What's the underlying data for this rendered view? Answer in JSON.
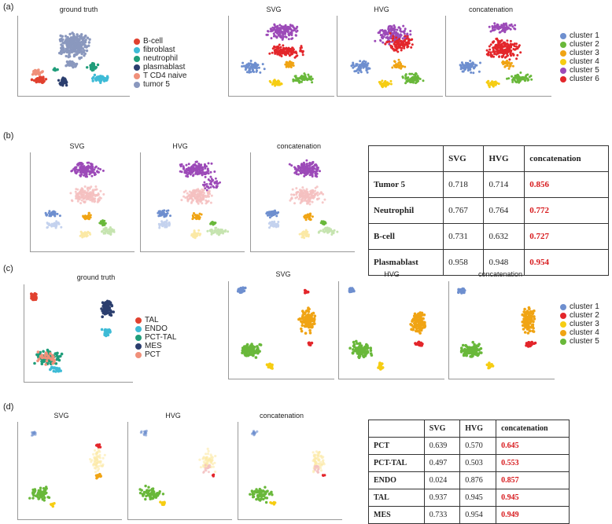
{
  "panels": {
    "a": {
      "label": "(a)",
      "titles": {
        "gt": "ground truth",
        "svg": "SVG",
        "hvg": "HVG",
        "cat": "concatenation"
      }
    },
    "b": {
      "label": "(b)",
      "titles": {
        "svg": "SVG",
        "hvg": "HVG",
        "cat": "concatenation"
      }
    },
    "c": {
      "label": "(c)",
      "titles": {
        "gt": "ground truth",
        "svg": "SVG",
        "hvg": "HVG",
        "cat": "concatenation"
      }
    },
    "d": {
      "label": "(d)",
      "titles": {
        "svg": "SVG",
        "hvg": "HVG",
        "cat": "concatenation"
      }
    }
  },
  "legend_a_celltypes": [
    {
      "label": "B-cell",
      "color": "#e1412f"
    },
    {
      "label": "fibroblast",
      "color": "#3ebbd6"
    },
    {
      "label": "neutrophil",
      "color": "#1f9d7a"
    },
    {
      "label": "plasmablast",
      "color": "#2b3e6e"
    },
    {
      "label": "T CD4 naive",
      "color": "#f0907a"
    },
    {
      "label": "tumor 5",
      "color": "#8a98be"
    }
  ],
  "legend_a_clusters": [
    {
      "label": "cluster 1",
      "color": "#6e8fcf"
    },
    {
      "label": "cluster 2",
      "color": "#69b83a"
    },
    {
      "label": "cluster 3",
      "color": "#f0a414"
    },
    {
      "label": "cluster 4",
      "color": "#f6cd13"
    },
    {
      "label": "cluster 5",
      "color": "#9c4ab8"
    },
    {
      "label": "cluster 6",
      "color": "#e3262b"
    }
  ],
  "legend_c_celltypes": [
    {
      "label": "TAL",
      "color": "#e1412f"
    },
    {
      "label": "ENDO",
      "color": "#3ebbd6"
    },
    {
      "label": "PCT-TAL",
      "color": "#1f9d7a"
    },
    {
      "label": "MES",
      "color": "#2b3e6e"
    },
    {
      "label": "PCT",
      "color": "#f0907a"
    }
  ],
  "legend_c_clusters": [
    {
      "label": "cluster 1",
      "color": "#6e8fcf"
    },
    {
      "label": "cluster 2",
      "color": "#e3262b"
    },
    {
      "label": "cluster 3",
      "color": "#f6cd13"
    },
    {
      "label": "cluster 4",
      "color": "#f0a414"
    },
    {
      "label": "cluster 5",
      "color": "#69b83a"
    }
  ],
  "table_b": {
    "headers": [
      "",
      "SVG",
      "HVG",
      "concatenation"
    ],
    "rows": [
      {
        "name": "Tumor 5",
        "svg": "0.718",
        "hvg": "0.714",
        "cat": "0.856"
      },
      {
        "name": "Neutrophil",
        "svg": "0.767",
        "hvg": "0.764",
        "cat": "0.772"
      },
      {
        "name": "B-cell",
        "svg": "0.731",
        "hvg": "0.632",
        "cat": "0.727"
      },
      {
        "name": "Plasmablast",
        "svg": "0.958",
        "hvg": "0.948",
        "cat": "0.954"
      }
    ]
  },
  "table_d": {
    "headers": [
      "",
      "SVG",
      "HVG",
      "concatenation"
    ],
    "rows": [
      {
        "name": "PCT",
        "svg": "0.639",
        "hvg": "0.570",
        "cat": "0.645"
      },
      {
        "name": "PCT-TAL",
        "svg": "0.497",
        "hvg": "0.503",
        "cat": "0.553"
      },
      {
        "name": "ENDO",
        "svg": "0.024",
        "hvg": "0.876",
        "cat": "0.857"
      },
      {
        "name": "TAL",
        "svg": "0.937",
        "hvg": "0.945",
        "cat": "0.945"
      },
      {
        "name": "MES",
        "svg": "0.733",
        "hvg": "0.954",
        "cat": "0.949"
      }
    ]
  },
  "highlight_color": "#d7191c"
}
